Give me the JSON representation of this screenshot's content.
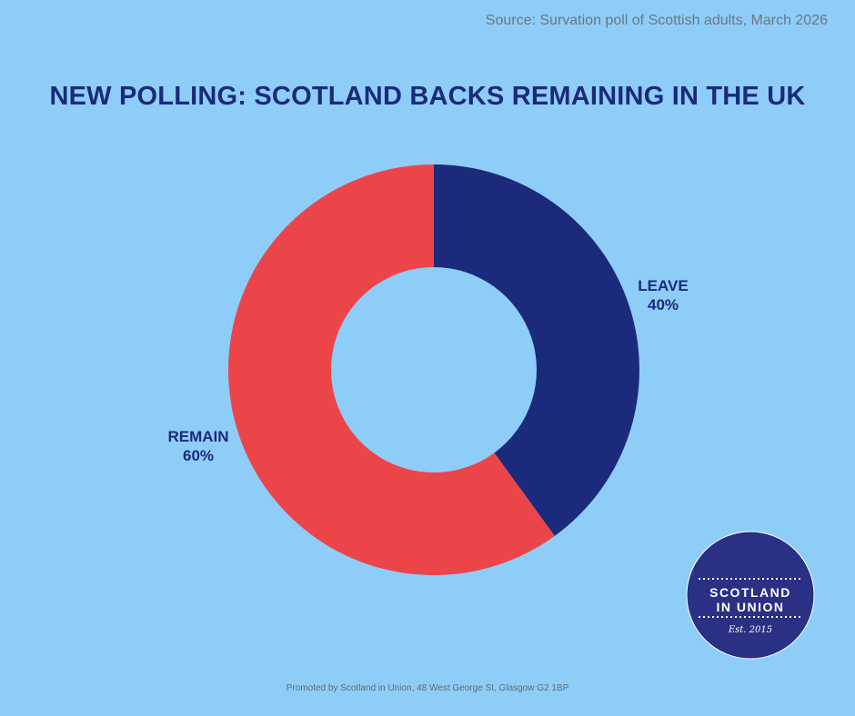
{
  "source": "Source: Survation poll of Scottish adults, March 2026",
  "title": "NEW POLLING: SCOTLAND BACKS REMAINING IN THE UK",
  "footer": "Promoted by Scotland in Union, 48 West George St, Glasgow G2 1BP",
  "logo": {
    "line1": "SCOTLAND",
    "line2": "IN UNION",
    "est": "Est. 2015",
    "color": "#2a3083"
  },
  "chart_data": {
    "type": "pie",
    "variant": "donut",
    "categories": [
      "LEAVE",
      "REMAIN"
    ],
    "values": [
      40,
      60
    ],
    "value_labels": [
      "40%",
      "60%"
    ],
    "colors": [
      "#1b2a7b",
      "#ec4549"
    ],
    "start": "12 o'clock, clockwise"
  }
}
